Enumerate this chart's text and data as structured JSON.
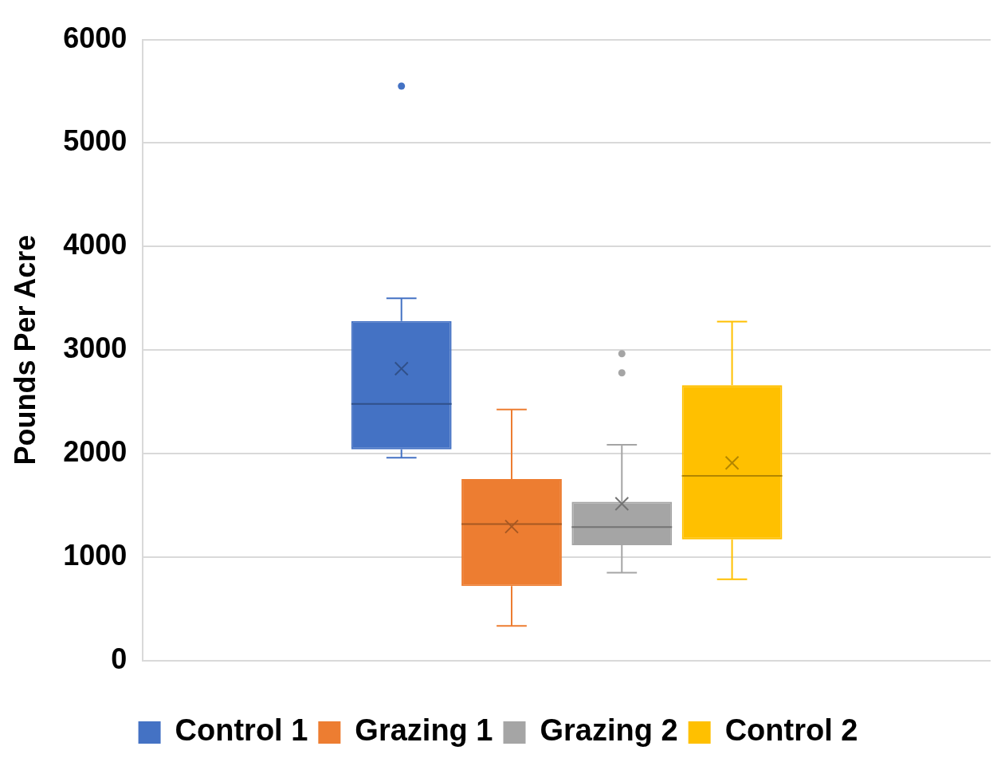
{
  "chart_data": {
    "type": "box",
    "categories": [
      null
    ],
    "ylabel": "Pounds Per Acre",
    "ylim": [
      0,
      6000
    ],
    "yticks": [
      0,
      1000,
      2000,
      3000,
      4000,
      5000,
      6000
    ],
    "grid": "y",
    "legend": "bottom",
    "series": [
      {
        "name": "Control 1",
        "color": "#4472c4",
        "boxes": [
          {
            "low": 1960,
            "q1": 2040,
            "median": 2480,
            "q3": 3280,
            "high": 3500,
            "mean": 2820,
            "outliers": [
              5550
            ]
          }
        ]
      },
      {
        "name": "Grazing 1",
        "color": "#ed7d31",
        "boxes": [
          {
            "low": 335,
            "q1": 720,
            "median": 1320,
            "q3": 1755,
            "high": 2425,
            "mean": 1295
          }
        ]
      },
      {
        "name": "Grazing 2",
        "color": "#a5a5a5",
        "boxes": [
          {
            "low": 850,
            "q1": 1115,
            "median": 1290,
            "q3": 1535,
            "high": 2085,
            "mean": 1515,
            "outliers": [
              2965,
              2780
            ]
          }
        ]
      },
      {
        "name": "Control 2",
        "color": "#ffc000",
        "boxes": [
          {
            "low": 785,
            "q1": 1170,
            "median": 1785,
            "q3": 2660,
            "high": 3275,
            "mean": 1910
          }
        ]
      }
    ]
  }
}
